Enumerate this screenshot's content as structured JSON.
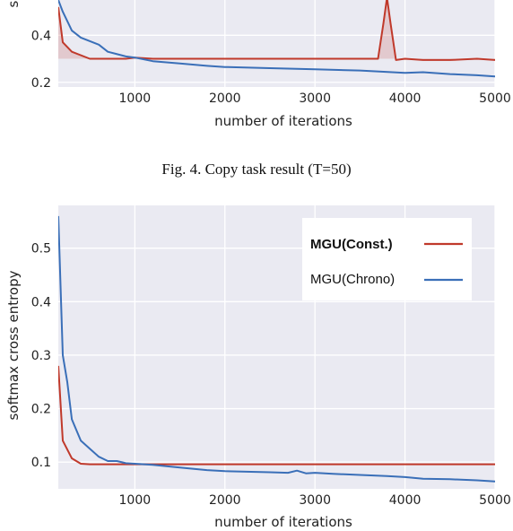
{
  "caption": "Fig. 4.  Copy task result (T=50)",
  "colors": {
    "const": "#c0392b",
    "chrono": "#3a6fb8",
    "panel": "#eaeaf2",
    "grid": "#ffffff"
  },
  "chart_data": [
    {
      "type": "line",
      "xlabel": "number of iterations",
      "ylabel": "softmax cross entropy",
      "xlim": [
        150,
        5000
      ],
      "ylim": [
        0.18,
        0.55
      ],
      "xticks": [
        1000,
        2000,
        3000,
        4000,
        5000
      ],
      "yticks": [
        0.2,
        0.4
      ],
      "grid": true,
      "series": [
        {
          "name": "MGU(Const.)",
          "x": [
            150,
            200,
            300,
            500,
            700,
            900,
            1000,
            1200,
            1500,
            2000,
            2500,
            3000,
            3500,
            3700,
            3760,
            3800,
            3840,
            3900,
            4000,
            4200,
            4500,
            4800,
            5000
          ],
          "y": [
            0.52,
            0.37,
            0.33,
            0.3,
            0.3,
            0.3,
            0.305,
            0.3,
            0.3,
            0.3,
            0.3,
            0.3,
            0.3,
            0.3,
            0.45,
            0.56,
            0.45,
            0.295,
            0.3,
            0.295,
            0.295,
            0.3,
            0.295
          ]
        },
        {
          "name": "MGU(Chrono)",
          "x": [
            150,
            200,
            300,
            400,
            600,
            700,
            900,
            1000,
            1200,
            1500,
            1800,
            2000,
            2500,
            3000,
            3500,
            4000,
            4200,
            4500,
            4800,
            5000
          ],
          "y": [
            0.55,
            0.5,
            0.42,
            0.39,
            0.36,
            0.33,
            0.31,
            0.305,
            0.29,
            0.28,
            0.27,
            0.265,
            0.26,
            0.255,
            0.25,
            0.24,
            0.243,
            0.235,
            0.23,
            0.225
          ]
        }
      ]
    },
    {
      "type": "line",
      "xlabel": "number of iterations",
      "ylabel": "softmax cross entropy",
      "xlim": [
        150,
        5000
      ],
      "ylim": [
        0.05,
        0.58
      ],
      "xticks": [
        1000,
        2000,
        3000,
        4000,
        5000
      ],
      "yticks": [
        0.1,
        0.2,
        0.3,
        0.4,
        0.5
      ],
      "grid": true,
      "legend": "top-right",
      "series": [
        {
          "name": "MGU(Const.)",
          "x": [
            150,
            200,
            300,
            400,
            500,
            700,
            1000,
            2000,
            3000,
            4000,
            5000
          ],
          "y": [
            0.28,
            0.14,
            0.107,
            0.097,
            0.096,
            0.096,
            0.096,
            0.096,
            0.096,
            0.096,
            0.096
          ]
        },
        {
          "name": "MGU(Chrono)",
          "x": [
            150,
            200,
            250,
            300,
            400,
            500,
            600,
            700,
            800,
            900,
            1000,
            1200,
            1500,
            1800,
            2000,
            2500,
            2700,
            2800,
            2900,
            3000,
            3200,
            3500,
            3800,
            4000,
            4200,
            4500,
            4800,
            5000
          ],
          "y": [
            0.56,
            0.3,
            0.25,
            0.18,
            0.14,
            0.125,
            0.11,
            0.102,
            0.102,
            0.098,
            0.097,
            0.095,
            0.09,
            0.085,
            0.083,
            0.081,
            0.08,
            0.084,
            0.079,
            0.08,
            0.078,
            0.076,
            0.074,
            0.072,
            0.069,
            0.068,
            0.066,
            0.064
          ]
        }
      ]
    }
  ]
}
